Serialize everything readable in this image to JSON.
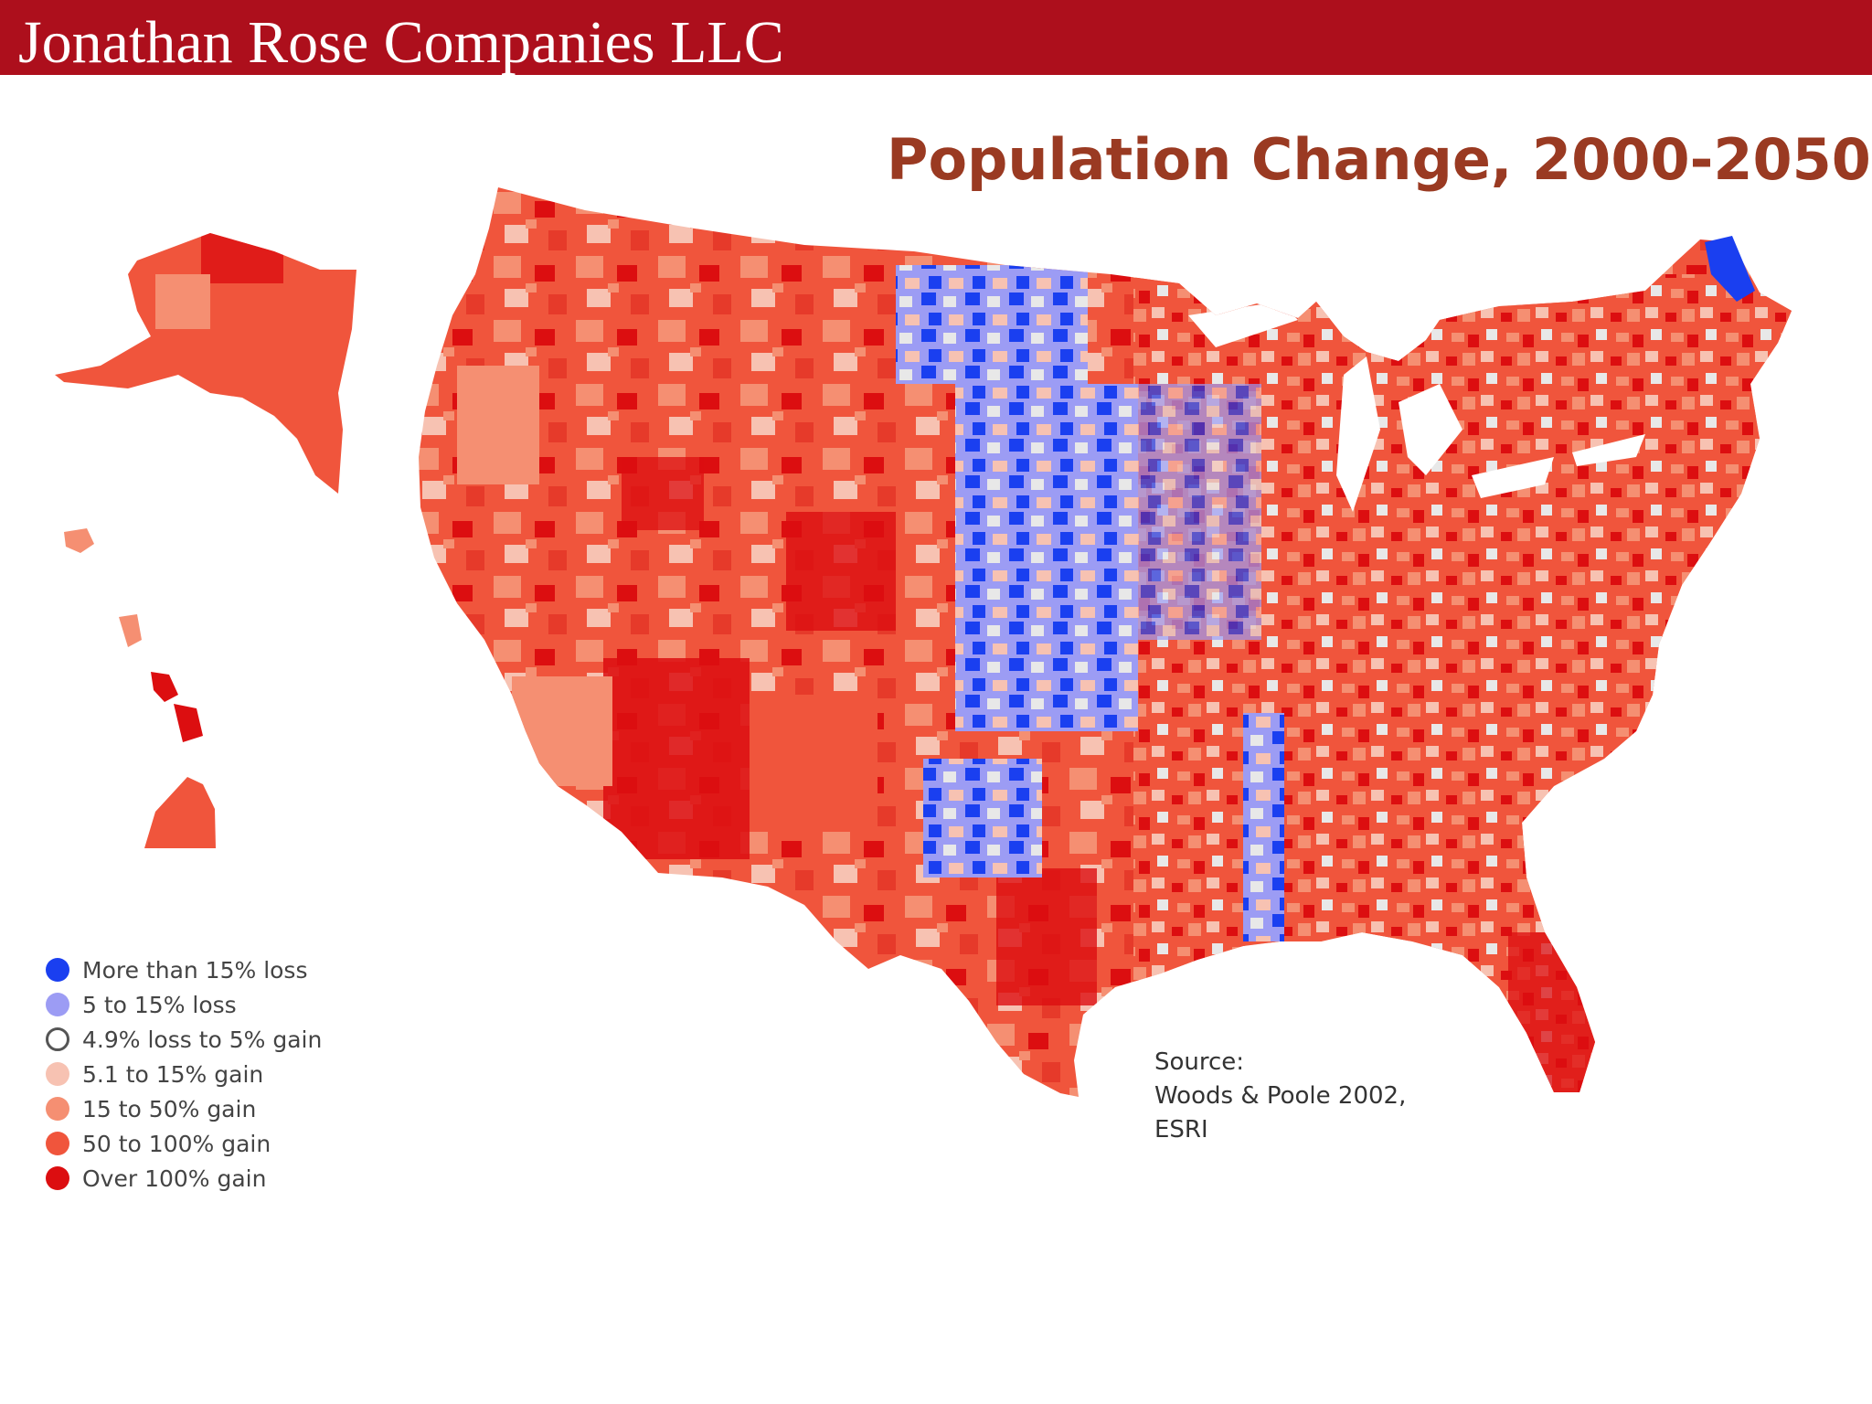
{
  "header": {
    "title": "Jonathan Rose Companies LLC",
    "bar_color": "#ad0f1c"
  },
  "map": {
    "title": "Population Change, 2000-2050",
    "legend": [
      {
        "label": "More than 15% loss",
        "color": "#1a3ff0",
        "hollow": false
      },
      {
        "label": "5 to 15% loss",
        "color": "#9c9cf4",
        "hollow": false
      },
      {
        "label": "4.9% loss to 5% gain",
        "color": "#555555",
        "hollow": true
      },
      {
        "label": "5.1 to 15% gain",
        "color": "#f7c2b2",
        "hollow": false
      },
      {
        "label": "15 to 50% gain",
        "color": "#f58f72",
        "hollow": false
      },
      {
        "label": "50 to 100% gain",
        "color": "#f0553c",
        "hollow": false
      },
      {
        "label": "Over 100% gain",
        "color": "#dc0e10",
        "hollow": false
      }
    ],
    "source_lines": [
      "Source:",
      "Woods & Poole 2002,",
      "ESRI"
    ]
  }
}
